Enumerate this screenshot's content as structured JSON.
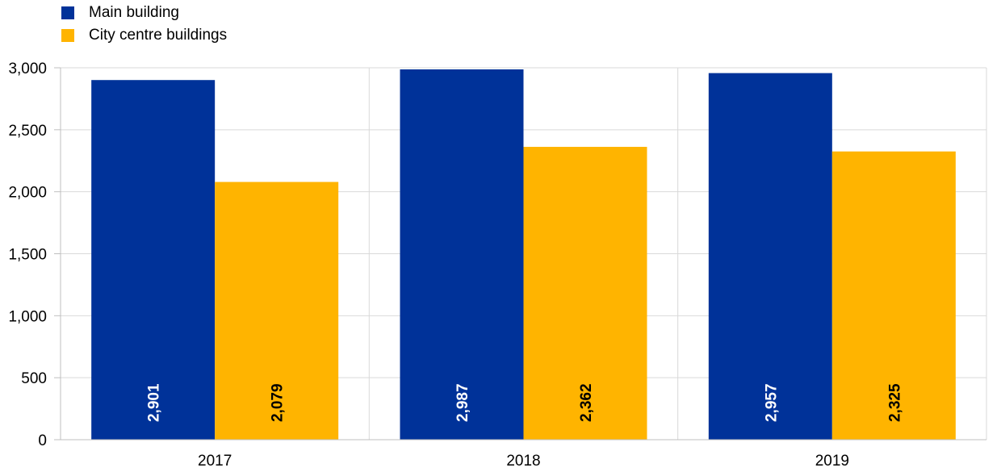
{
  "chart_data": {
    "type": "bar",
    "categories": [
      "2017",
      "2018",
      "2019"
    ],
    "series": [
      {
        "name": "Main building",
        "values": [
          2901,
          2987,
          2957
        ],
        "labels": [
          "2,901",
          "2,987",
          "2,957"
        ],
        "color": "#003299",
        "label_color": "#ffffff"
      },
      {
        "name": "City centre buildings",
        "values": [
          2079,
          2362,
          2325
        ],
        "labels": [
          "2,079",
          "2,362",
          "2,325"
        ],
        "color": "#FFB400",
        "label_color": "#000000"
      }
    ],
    "ylim": [
      0,
      3000
    ],
    "yticks": [
      0,
      500,
      1000,
      1500,
      2000,
      2500,
      3000
    ],
    "ytick_labels": [
      "0",
      "500",
      "1,000",
      "1,500",
      "2,000",
      "2,500",
      "3,000"
    ],
    "grid": true,
    "legend_position": "top-left",
    "title": "",
    "xlabel": "",
    "ylabel": ""
  }
}
